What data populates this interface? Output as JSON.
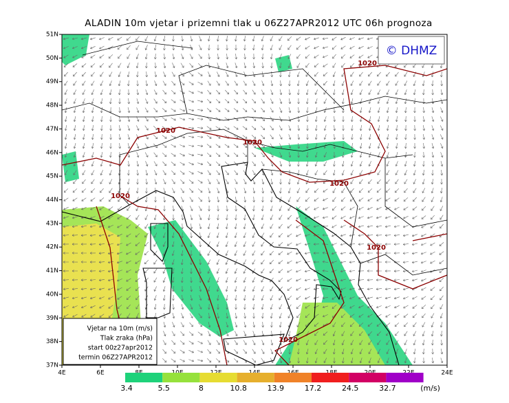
{
  "title": "ALADIN 10m vjetar i prizemni tlak u 06Z27APR2012 UTC 06h prognoza",
  "copyright": "© DHMZ",
  "map": {
    "xlim": [
      4,
      24
    ],
    "ylim": [
      37,
      51
    ],
    "xticks": [
      {
        "value": 4,
        "label": "4E"
      },
      {
        "value": 6,
        "label": "6E"
      },
      {
        "value": 8,
        "label": "8E"
      },
      {
        "value": 10,
        "label": "10E"
      },
      {
        "value": 12,
        "label": "12E"
      },
      {
        "value": 14,
        "label": "14E"
      },
      {
        "value": 16,
        "label": "16E"
      },
      {
        "value": 18,
        "label": "18E"
      },
      {
        "value": 20,
        "label": "20E"
      },
      {
        "value": 22,
        "label": "22E"
      },
      {
        "value": 24,
        "label": "24E"
      }
    ],
    "yticks": [
      {
        "value": 37,
        "label": "37N"
      },
      {
        "value": 38,
        "label": "38N"
      },
      {
        "value": 39,
        "label": "39N"
      },
      {
        "value": 40,
        "label": "40N"
      },
      {
        "value": 41,
        "label": "41N"
      },
      {
        "value": 42,
        "label": "42N"
      },
      {
        "value": 43,
        "label": "43N"
      },
      {
        "value": 44,
        "label": "44N"
      },
      {
        "value": 45,
        "label": "45N"
      },
      {
        "value": 46,
        "label": "46N"
      },
      {
        "value": 47,
        "label": "47N"
      },
      {
        "value": 48,
        "label": "48N"
      },
      {
        "value": 49,
        "label": "49N"
      },
      {
        "value": 50,
        "label": "50N"
      },
      {
        "value": 51,
        "label": "51N"
      }
    ]
  },
  "isobar_labels": [
    "1020",
    "1020",
    "1020",
    "1020",
    "1020",
    "1020",
    "1020"
  ],
  "legend": [
    "Vjetar na 10m (m/s)",
    "Tlak zraka (hPa)",
    "start 00z27apr2012",
    "termin 06Z27APR2012"
  ],
  "colorbar": {
    "ticks": [
      3.4,
      5.5,
      8,
      10.8,
      13.9,
      17.2,
      24.5,
      32.7
    ],
    "colors": [
      "#1ed27a",
      "#96e13c",
      "#e6dc32",
      "#e6af2d",
      "#f08228",
      "#f01e1e",
      "#d20064",
      "#a000c8"
    ],
    "unit": "(m/s)"
  }
}
